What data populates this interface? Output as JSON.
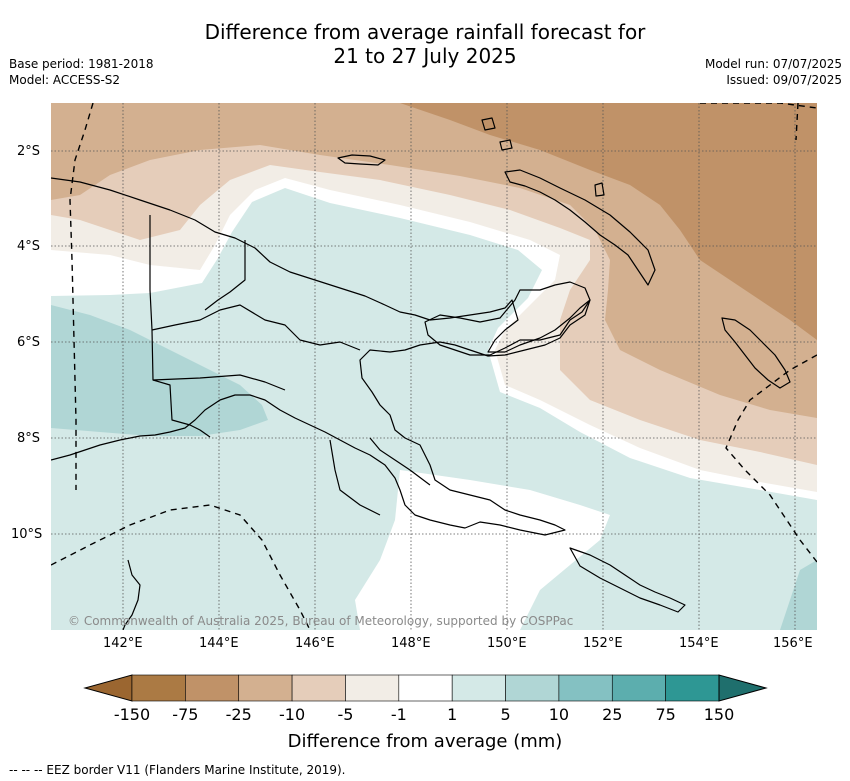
{
  "title_line1": "Difference from average rainfall forecast for",
  "title_line2": "21 to 27 July 2025",
  "base_period": "Base period: 1981-2018",
  "model": "Model: ACCESS-S2",
  "model_run": "Model run: 07/07/2025",
  "issued": "Issued: 09/07/2025",
  "lon_labels": [
    "142°E",
    "144°E",
    "146°E",
    "148°E",
    "150°E",
    "152°E",
    "154°E",
    "156°E"
  ],
  "lat_labels": [
    "2°S",
    "4°S",
    "6°S",
    "8°S",
    "10°S"
  ],
  "copyright": "© Commonwealth of Australia 2025, Bureau of Meteorology, supported by COSPPac",
  "colorbar": {
    "ticks": [
      "-150",
      "-75",
      "-25",
      "-10",
      "-5",
      "-1",
      "1",
      "5",
      "10",
      "25",
      "75",
      "150"
    ],
    "colors": [
      "#9b6630",
      "#ab7a44",
      "#c09268",
      "#d3b090",
      "#e5cdba",
      "#f2ede6",
      "#ffffff",
      "#d4e9e7",
      "#b0d6d5",
      "#84c1c2",
      "#5caeae",
      "#2e9794",
      "#1f6f6d"
    ],
    "title": "Difference from average (mm)"
  },
  "eez_note": "--  --  -- EEZ border V11 (Flanders Marine Institute, 2019)."
}
